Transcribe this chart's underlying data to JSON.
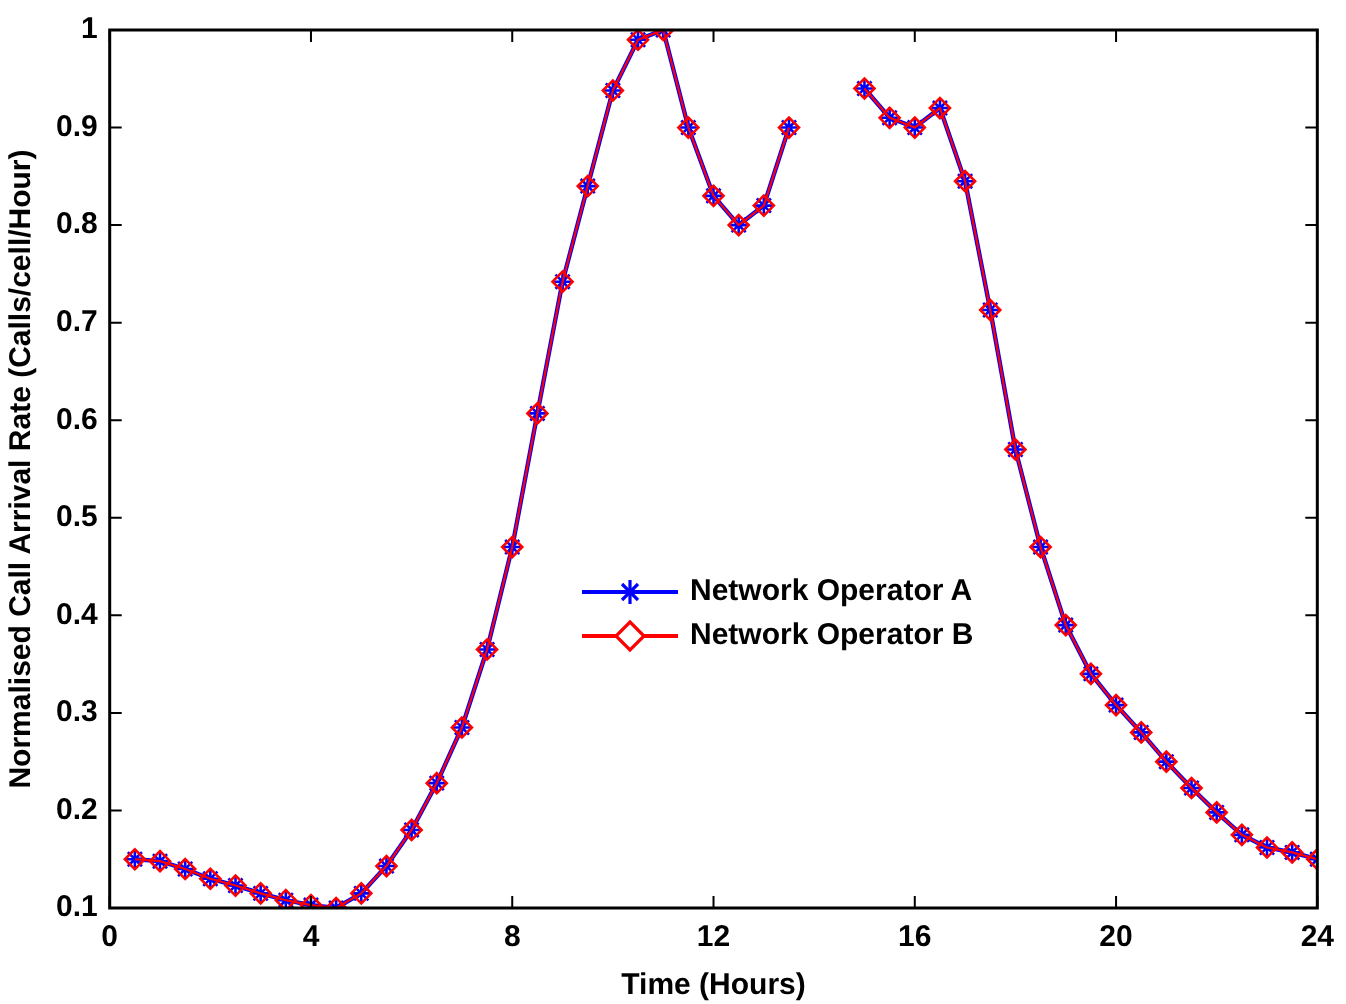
{
  "chart_data": {
    "type": "line",
    "xlabel": "Time (Hours)",
    "ylabel": "Normalised Call Arrival Rate (Calls/cell/Hour)",
    "x": [
      0.5,
      1,
      1.5,
      2,
      2.5,
      3,
      3.5,
      4,
      4.5,
      5,
      5.5,
      6,
      6.5,
      7,
      7.5,
      8,
      8.5,
      9,
      9.5,
      10,
      10.5,
      11,
      11.5,
      12,
      12.5,
      13,
      13.5,
      14,
      14.5,
      15,
      15.5,
      16,
      16.5,
      17,
      17.5,
      18,
      18.5,
      19,
      19.5,
      20,
      20.5,
      21,
      21.5,
      22,
      22.5,
      23,
      23.5,
      24
    ],
    "series": [
      {
        "name": "Network Operator A",
        "color": "#0000ff",
        "marker": "cross",
        "values": [
          0.15,
          0.148,
          0.14,
          0.13,
          0.123,
          0.115,
          0.108,
          0.103,
          0.1,
          0.115,
          0.143,
          0.18,
          0.228,
          0.285,
          0.365,
          0.47,
          0.607,
          0.742,
          0.84,
          0.938,
          0.99,
          1.0,
          0.9,
          0.83,
          0.8,
          0.82,
          0.9,
          null,
          null,
          0.94,
          0.91,
          0.9,
          0.92,
          0.845,
          0.713,
          0.57,
          0.47,
          0.39,
          0.34,
          0.308,
          0.28,
          0.25,
          0.223,
          0.198,
          0.175,
          0.162,
          0.157,
          0.15
        ]
      },
      {
        "name": "Network Operator B",
        "color": "#ff0000",
        "marker": "diamond",
        "values": [
          0.15,
          0.148,
          0.14,
          0.13,
          0.123,
          0.115,
          0.108,
          0.103,
          0.1,
          0.115,
          0.143,
          0.18,
          0.228,
          0.285,
          0.365,
          0.47,
          0.607,
          0.742,
          0.84,
          0.938,
          0.99,
          1.0,
          0.9,
          0.83,
          0.8,
          0.82,
          0.9,
          null,
          null,
          0.94,
          0.91,
          0.9,
          0.92,
          0.845,
          0.713,
          0.57,
          0.47,
          0.39,
          0.34,
          0.308,
          0.28,
          0.25,
          0.223,
          0.198,
          0.175,
          0.162,
          0.157,
          0.15
        ]
      }
    ],
    "xlim": [
      0,
      24
    ],
    "xticks": [
      0,
      4,
      8,
      12,
      16,
      20,
      24
    ],
    "ylim": [
      0.1,
      1
    ],
    "yticks": [
      0.1,
      0.2,
      0.3,
      0.4,
      0.5,
      0.6,
      0.7,
      0.8,
      0.9,
      1
    ],
    "grid": false,
    "legend": "center",
    "line_style": "solid"
  }
}
